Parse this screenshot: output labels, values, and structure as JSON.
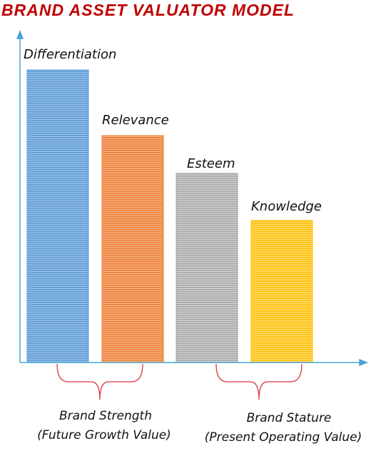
{
  "title": "BRAND ASSET VALUATOR MODEL",
  "bars": [
    {
      "label": "Differentiation"
    },
    {
      "label": "Relevance"
    },
    {
      "label": "Esteem"
    },
    {
      "label": "Knowledge"
    }
  ],
  "groups": [
    {
      "name": "Brand Strength",
      "note": "(Future Growth Value)"
    },
    {
      "name": "Brand Stature",
      "note": "(Present Operating Value)"
    }
  ]
}
